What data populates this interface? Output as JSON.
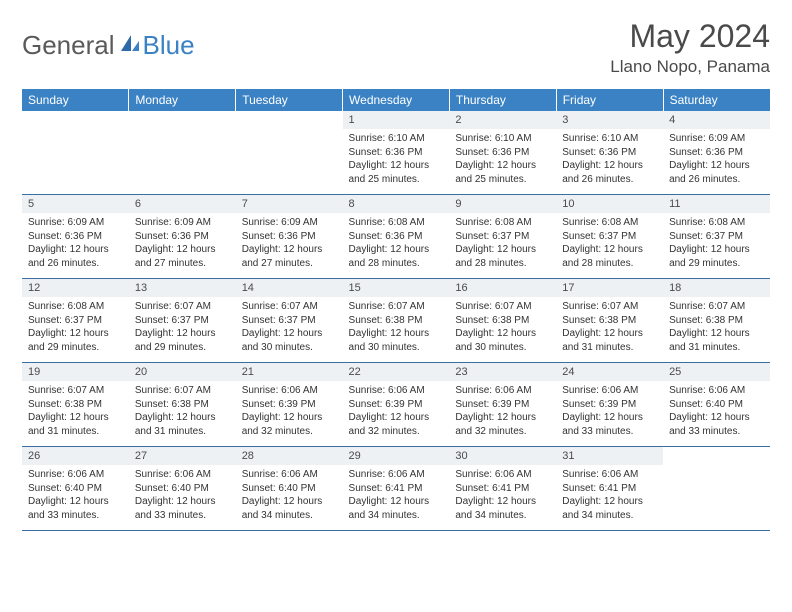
{
  "logo": {
    "part1": "General",
    "part2": "Blue"
  },
  "title": "May 2024",
  "location": "Llano Nopo, Panama",
  "colors": {
    "header_bg": "#3b82c4",
    "header_text": "#ffffff",
    "daynum_bg": "#eef1f4",
    "row_border": "#3b6ea0",
    "text": "#333333",
    "title_text": "#4a4a4a"
  },
  "weekdays": [
    "Sunday",
    "Monday",
    "Tuesday",
    "Wednesday",
    "Thursday",
    "Friday",
    "Saturday"
  ],
  "weeks": [
    [
      {
        "n": "",
        "sr": "",
        "ss": "",
        "dl": ""
      },
      {
        "n": "",
        "sr": "",
        "ss": "",
        "dl": ""
      },
      {
        "n": "",
        "sr": "",
        "ss": "",
        "dl": ""
      },
      {
        "n": "1",
        "sr": "Sunrise: 6:10 AM",
        "ss": "Sunset: 6:36 PM",
        "dl": "Daylight: 12 hours and 25 minutes."
      },
      {
        "n": "2",
        "sr": "Sunrise: 6:10 AM",
        "ss": "Sunset: 6:36 PM",
        "dl": "Daylight: 12 hours and 25 minutes."
      },
      {
        "n": "3",
        "sr": "Sunrise: 6:10 AM",
        "ss": "Sunset: 6:36 PM",
        "dl": "Daylight: 12 hours and 26 minutes."
      },
      {
        "n": "4",
        "sr": "Sunrise: 6:09 AM",
        "ss": "Sunset: 6:36 PM",
        "dl": "Daylight: 12 hours and 26 minutes."
      }
    ],
    [
      {
        "n": "5",
        "sr": "Sunrise: 6:09 AM",
        "ss": "Sunset: 6:36 PM",
        "dl": "Daylight: 12 hours and 26 minutes."
      },
      {
        "n": "6",
        "sr": "Sunrise: 6:09 AM",
        "ss": "Sunset: 6:36 PM",
        "dl": "Daylight: 12 hours and 27 minutes."
      },
      {
        "n": "7",
        "sr": "Sunrise: 6:09 AM",
        "ss": "Sunset: 6:36 PM",
        "dl": "Daylight: 12 hours and 27 minutes."
      },
      {
        "n": "8",
        "sr": "Sunrise: 6:08 AM",
        "ss": "Sunset: 6:36 PM",
        "dl": "Daylight: 12 hours and 28 minutes."
      },
      {
        "n": "9",
        "sr": "Sunrise: 6:08 AM",
        "ss": "Sunset: 6:37 PM",
        "dl": "Daylight: 12 hours and 28 minutes."
      },
      {
        "n": "10",
        "sr": "Sunrise: 6:08 AM",
        "ss": "Sunset: 6:37 PM",
        "dl": "Daylight: 12 hours and 28 minutes."
      },
      {
        "n": "11",
        "sr": "Sunrise: 6:08 AM",
        "ss": "Sunset: 6:37 PM",
        "dl": "Daylight: 12 hours and 29 minutes."
      }
    ],
    [
      {
        "n": "12",
        "sr": "Sunrise: 6:08 AM",
        "ss": "Sunset: 6:37 PM",
        "dl": "Daylight: 12 hours and 29 minutes."
      },
      {
        "n": "13",
        "sr": "Sunrise: 6:07 AM",
        "ss": "Sunset: 6:37 PM",
        "dl": "Daylight: 12 hours and 29 minutes."
      },
      {
        "n": "14",
        "sr": "Sunrise: 6:07 AM",
        "ss": "Sunset: 6:37 PM",
        "dl": "Daylight: 12 hours and 30 minutes."
      },
      {
        "n": "15",
        "sr": "Sunrise: 6:07 AM",
        "ss": "Sunset: 6:38 PM",
        "dl": "Daylight: 12 hours and 30 minutes."
      },
      {
        "n": "16",
        "sr": "Sunrise: 6:07 AM",
        "ss": "Sunset: 6:38 PM",
        "dl": "Daylight: 12 hours and 30 minutes."
      },
      {
        "n": "17",
        "sr": "Sunrise: 6:07 AM",
        "ss": "Sunset: 6:38 PM",
        "dl": "Daylight: 12 hours and 31 minutes."
      },
      {
        "n": "18",
        "sr": "Sunrise: 6:07 AM",
        "ss": "Sunset: 6:38 PM",
        "dl": "Daylight: 12 hours and 31 minutes."
      }
    ],
    [
      {
        "n": "19",
        "sr": "Sunrise: 6:07 AM",
        "ss": "Sunset: 6:38 PM",
        "dl": "Daylight: 12 hours and 31 minutes."
      },
      {
        "n": "20",
        "sr": "Sunrise: 6:07 AM",
        "ss": "Sunset: 6:38 PM",
        "dl": "Daylight: 12 hours and 31 minutes."
      },
      {
        "n": "21",
        "sr": "Sunrise: 6:06 AM",
        "ss": "Sunset: 6:39 PM",
        "dl": "Daylight: 12 hours and 32 minutes."
      },
      {
        "n": "22",
        "sr": "Sunrise: 6:06 AM",
        "ss": "Sunset: 6:39 PM",
        "dl": "Daylight: 12 hours and 32 minutes."
      },
      {
        "n": "23",
        "sr": "Sunrise: 6:06 AM",
        "ss": "Sunset: 6:39 PM",
        "dl": "Daylight: 12 hours and 32 minutes."
      },
      {
        "n": "24",
        "sr": "Sunrise: 6:06 AM",
        "ss": "Sunset: 6:39 PM",
        "dl": "Daylight: 12 hours and 33 minutes."
      },
      {
        "n": "25",
        "sr": "Sunrise: 6:06 AM",
        "ss": "Sunset: 6:40 PM",
        "dl": "Daylight: 12 hours and 33 minutes."
      }
    ],
    [
      {
        "n": "26",
        "sr": "Sunrise: 6:06 AM",
        "ss": "Sunset: 6:40 PM",
        "dl": "Daylight: 12 hours and 33 minutes."
      },
      {
        "n": "27",
        "sr": "Sunrise: 6:06 AM",
        "ss": "Sunset: 6:40 PM",
        "dl": "Daylight: 12 hours and 33 minutes."
      },
      {
        "n": "28",
        "sr": "Sunrise: 6:06 AM",
        "ss": "Sunset: 6:40 PM",
        "dl": "Daylight: 12 hours and 34 minutes."
      },
      {
        "n": "29",
        "sr": "Sunrise: 6:06 AM",
        "ss": "Sunset: 6:41 PM",
        "dl": "Daylight: 12 hours and 34 minutes."
      },
      {
        "n": "30",
        "sr": "Sunrise: 6:06 AM",
        "ss": "Sunset: 6:41 PM",
        "dl": "Daylight: 12 hours and 34 minutes."
      },
      {
        "n": "31",
        "sr": "Sunrise: 6:06 AM",
        "ss": "Sunset: 6:41 PM",
        "dl": "Daylight: 12 hours and 34 minutes."
      },
      {
        "n": "",
        "sr": "",
        "ss": "",
        "dl": ""
      }
    ]
  ]
}
